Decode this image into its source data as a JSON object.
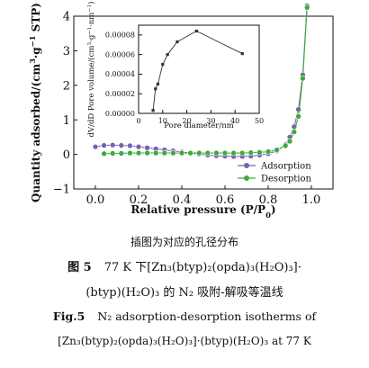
{
  "chart_data": [
    {
      "type": "line",
      "xlabel": "Relative pressure (P/P0)",
      "ylabel": "Quantity adsorbed/(cm3·g−1 STP)",
      "xlim": [
        -0.1,
        1.1
      ],
      "ylim": [
        -1,
        4
      ],
      "xticks": [
        "0.0",
        "0.2",
        "0.4",
        "0.6",
        "0.8",
        "1.0"
      ],
      "yticks": [
        "−1",
        "0",
        "1",
        "2",
        "3",
        "4"
      ],
      "legend_position": "lower-right",
      "series": [
        {
          "name": "Adsorption",
          "color": "#7b5fb3",
          "marker": "circle",
          "x": [
            0.0,
            0.04,
            0.08,
            0.12,
            0.16,
            0.2,
            0.24,
            0.28,
            0.32,
            0.36,
            0.4,
            0.44,
            0.48,
            0.52,
            0.56,
            0.6,
            0.64,
            0.68,
            0.72,
            0.76,
            0.8,
            0.84,
            0.88,
            0.9,
            0.92,
            0.94,
            0.96,
            0.98
          ],
          "y": [
            0.22,
            0.26,
            0.27,
            0.26,
            0.25,
            0.22,
            0.19,
            0.16,
            0.13,
            0.1,
            0.07,
            0.04,
            0.01,
            -0.02,
            -0.04,
            -0.05,
            -0.06,
            -0.06,
            -0.05,
            -0.02,
            0.02,
            0.1,
            0.28,
            0.5,
            0.8,
            1.3,
            2.3,
            4.3
          ]
        },
        {
          "name": "Desorption",
          "color": "#3faa3a",
          "marker": "circle",
          "x": [
            0.04,
            0.08,
            0.12,
            0.16,
            0.2,
            0.24,
            0.28,
            0.32,
            0.36,
            0.4,
            0.44,
            0.48,
            0.52,
            0.56,
            0.6,
            0.64,
            0.68,
            0.72,
            0.76,
            0.8,
            0.84,
            0.88,
            0.9,
            0.92,
            0.94,
            0.96,
            0.98
          ],
          "y": [
            0.02,
            0.03,
            0.03,
            0.04,
            0.04,
            0.04,
            0.04,
            0.04,
            0.04,
            0.04,
            0.04,
            0.04,
            0.04,
            0.04,
            0.04,
            0.04,
            0.04,
            0.05,
            0.06,
            0.08,
            0.13,
            0.25,
            0.38,
            0.65,
            1.1,
            2.2,
            4.25
          ]
        }
      ]
    },
    {
      "type": "line",
      "xlabel": "Pore diameter/nm",
      "ylabel": "dV/dD Pore volume/(cm3·g−1·nm−1)",
      "xlim": [
        0,
        50
      ],
      "ylim": [
        0,
        9e-05
      ],
      "xticks": [
        "0",
        "10",
        "20",
        "30",
        "40",
        "50"
      ],
      "yticks": [
        "0.00000",
        "0.00002",
        "0.00004",
        "0.00006",
        "0.00008"
      ],
      "series": [
        {
          "color": "#333333",
          "marker": "square",
          "x": [
            6,
            7,
            8,
            10,
            12,
            16,
            24,
            43
          ],
          "y": [
            3e-06,
            2.5e-05,
            3e-05,
            5e-05,
            6e-05,
            7.3e-05,
            8.4e-05,
            6.1e-05
          ]
        }
      ]
    }
  ],
  "captions": {
    "note": "插图为对应的孔径分布",
    "cn_label": "图 5",
    "cn_line1": "77 K 下[Zn₃(btyp)₂(opda)₃(H₂O)₃]·",
    "cn_line2": "(btyp)(H₂O)₃ 的 N₂ 吸附-解吸等温线",
    "en_label": "Fig.5",
    "en_line1": "N₂ adsorption-desorption isotherms of",
    "en_line2": "[Zn₃(btyp)₂(opda)₃(H₂O)₃]·(btyp)(H₂O)₃ at 77 K"
  }
}
